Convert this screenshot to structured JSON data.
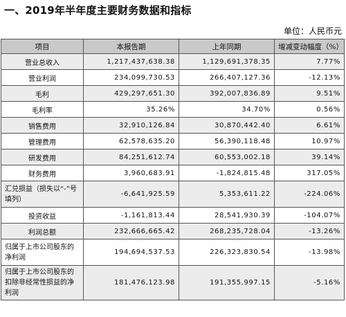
{
  "title": "一、2019年半年度主要财务数据和指标",
  "unit": "单位：人民币元",
  "table": {
    "headers": [
      "项目",
      "本报告期",
      "上年同期",
      "增减变动幅度（%）"
    ],
    "rows": [
      {
        "label": "营业总收入",
        "current": "1,217,437,638.38",
        "prior": "1,129,691,378.35",
        "change": "7.77%"
      },
      {
        "label": "营业利润",
        "current": "234,099,730.53",
        "prior": "266,407,127.36",
        "change": "-12.13%"
      },
      {
        "label": "毛利",
        "current": "429,297,651.30",
        "prior": "392,007,836.89",
        "change": "9.51%"
      },
      {
        "label": "毛利率",
        "current": "35.26%",
        "prior": "34.70%",
        "change": "0.56%"
      },
      {
        "label": "销售费用",
        "current": "32,910,126.84",
        "prior": "30,870,442.40",
        "change": "6.61%"
      },
      {
        "label": "管理费用",
        "current": "62,578,635.20",
        "prior": "56,390,118.48",
        "change": "10.97%"
      },
      {
        "label": "研发费用",
        "current": "84,251,612.74",
        "prior": "60,553,002.18",
        "change": "39.14%"
      },
      {
        "label": "财务费用",
        "current": "3,960,683.91",
        "prior": "-1,824,815.48",
        "change": "317.05%"
      },
      {
        "label": "汇兑损益（损失以“-”号填列）",
        "current": "-6,641,925.59",
        "prior": "5,353,611.22",
        "change": "-224.06%"
      },
      {
        "label": "投资收益",
        "current": "-1,161,813.44",
        "prior": "28,541,930.39",
        "change": "-104.07%"
      },
      {
        "label": "利润总额",
        "current": "232,666,665.42",
        "prior": "268,235,728.04",
        "change": "-13.26%"
      },
      {
        "label": "归属于上市公司股东的净利润",
        "current": "194,694,537.53",
        "prior": "226,323,830.54",
        "change": "-13.98%"
      },
      {
        "label": "归属于上市公司股东的扣除非经常性损益的净利润",
        "current": "181,476,123.98",
        "prior": "191,355,997.15",
        "change": "-5.16%"
      }
    ]
  }
}
